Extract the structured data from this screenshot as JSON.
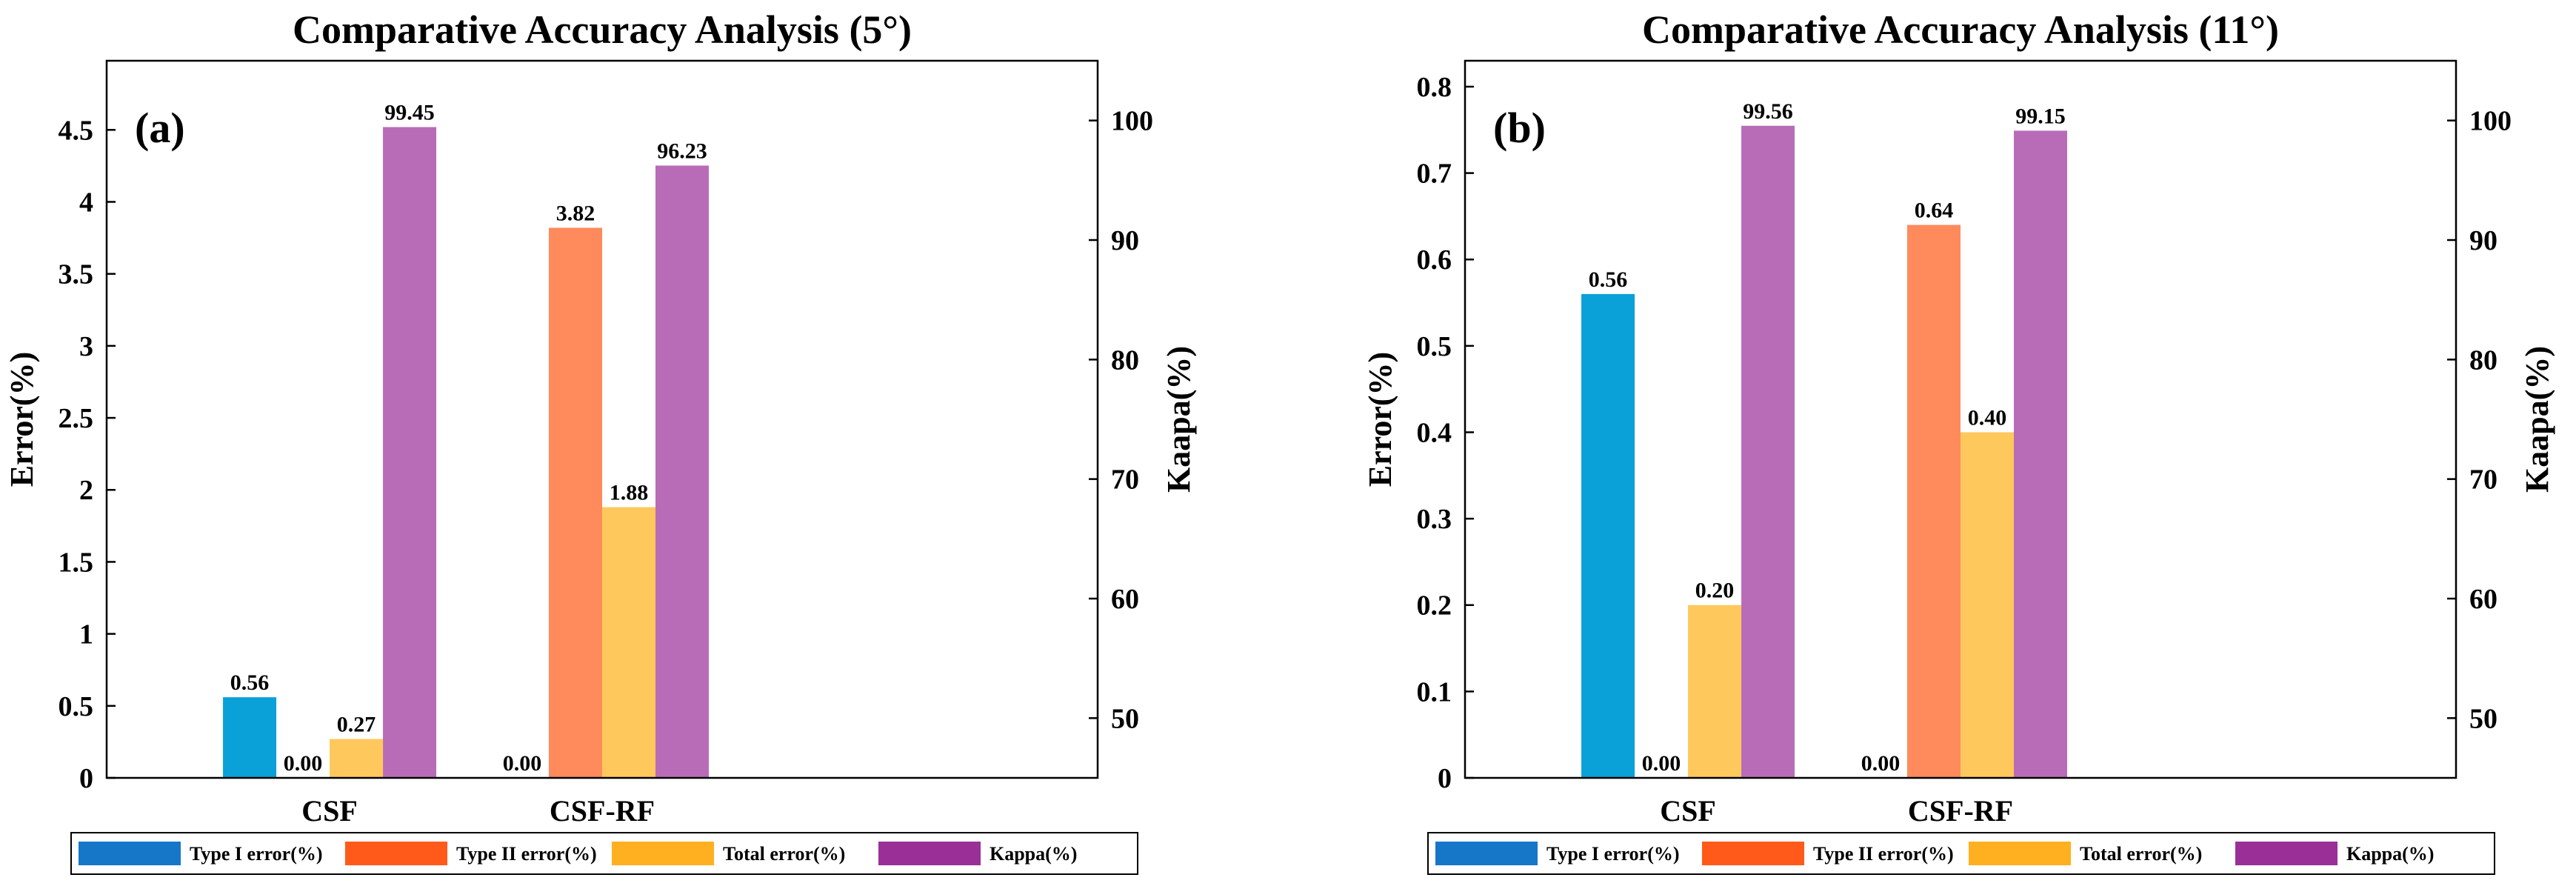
{
  "chart_data": [
    {
      "type": "bar",
      "panel_label": "(a)",
      "title": "Comparative Accuracy Analysis (5°)",
      "ylabel": "Error(%)",
      "y2label": "Kaapa(%)",
      "categories": [
        "CSF",
        "CSF-RF"
      ],
      "ylim": [
        0,
        4.98
      ],
      "yticks": [
        0,
        0.5,
        1,
        1.5,
        2,
        2.5,
        3,
        3.5,
        4,
        4.5
      ],
      "ytick_labels": [
        "0",
        "0.5",
        "1",
        "1.5",
        "2",
        "2.5",
        "3",
        "3.5",
        "4",
        "4.5"
      ],
      "y2lim": [
        45,
        105
      ],
      "y2ticks": [
        50,
        60,
        70,
        80,
        90,
        100
      ],
      "y2tick_labels": [
        "50",
        "60",
        "70",
        "80",
        "90",
        "100"
      ],
      "series": [
        {
          "name": "Type I error(%)",
          "axis": "left",
          "values": [
            0.56,
            0.0
          ],
          "labels": [
            "0.56",
            "0.00"
          ]
        },
        {
          "name": "Type II error(%)",
          "axis": "left",
          "values": [
            0.0,
            3.82
          ],
          "labels": [
            "0.00",
            "3.82"
          ]
        },
        {
          "name": "Total error(%)",
          "axis": "left",
          "values": [
            0.27,
            1.88
          ],
          "labels": [
            "0.27",
            "1.88"
          ]
        },
        {
          "name": "Kappa(%)",
          "axis": "right",
          "values": [
            99.45,
            96.23
          ],
          "labels": [
            "99.45",
            "96.23"
          ]
        }
      ]
    },
    {
      "type": "bar",
      "panel_label": "(b)",
      "title": "Comparative Accuracy Analysis (11°)",
      "ylabel": "Error(%)",
      "y2label": "Kaapa(%)",
      "categories": [
        "CSF",
        "CSF-RF"
      ],
      "ylim": [
        0,
        0.83
      ],
      "yticks": [
        0,
        0.1,
        0.2,
        0.3,
        0.4,
        0.5,
        0.6,
        0.7,
        0.8
      ],
      "ytick_labels": [
        "0",
        "0.1",
        "0.2",
        "0.3",
        "0.4",
        "0.5",
        "0.6",
        "0.7",
        "0.8"
      ],
      "y2lim": [
        45,
        105
      ],
      "y2ticks": [
        50,
        60,
        70,
        80,
        90,
        100
      ],
      "y2tick_labels": [
        "50",
        "60",
        "70",
        "80",
        "90",
        "100"
      ],
      "series": [
        {
          "name": "Type I error(%)",
          "axis": "left",
          "values": [
            0.56,
            0.0
          ],
          "labels": [
            "0.56",
            "0.00"
          ]
        },
        {
          "name": "Type II error(%)",
          "axis": "left",
          "values": [
            0.0,
            0.64
          ],
          "labels": [
            "0.00",
            "0.64"
          ]
        },
        {
          "name": "Total error(%)",
          "axis": "left",
          "values": [
            0.2,
            0.4
          ],
          "labels": [
            "0.20",
            "0.40"
          ]
        },
        {
          "name": "Kappa(%)",
          "axis": "right",
          "values": [
            99.56,
            99.15
          ],
          "labels": [
            "99.56",
            "99.15"
          ]
        }
      ]
    }
  ],
  "colors": {
    "series_bar": [
      "#0aa0d8",
      "#ff8a5c",
      "#ffc85c",
      "#b86cb8"
    ],
    "legend_swatch": [
      "#1677c8",
      "#ff5a1a",
      "#ffb020",
      "#9a2f98"
    ]
  }
}
